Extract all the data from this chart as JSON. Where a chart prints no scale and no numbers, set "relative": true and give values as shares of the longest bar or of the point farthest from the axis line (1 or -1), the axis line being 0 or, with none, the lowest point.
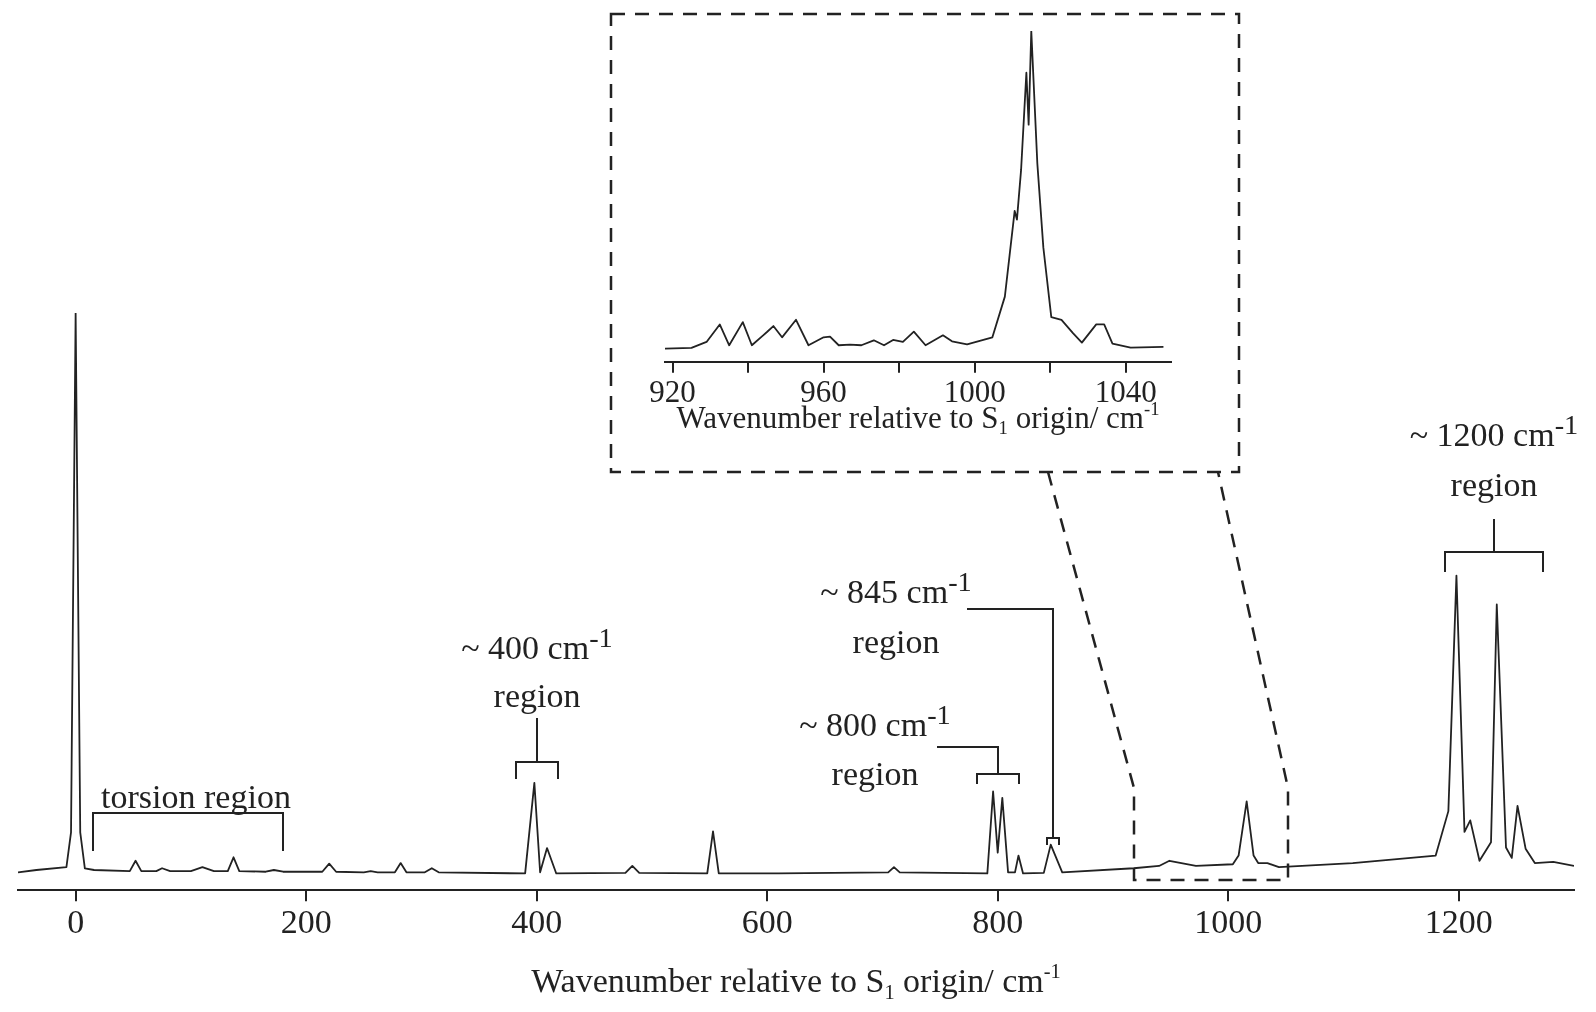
{
  "chart_data": [
    {
      "type": "line",
      "relative": true,
      "xlabel": "Wavenumber relative to S$_{1}$ origin/ cm$^{-1}$",
      "xlim": [
        -50,
        1300
      ],
      "xticks": [
        0,
        200,
        400,
        600,
        800,
        1000,
        1200
      ],
      "x": [
        -50,
        -34,
        -8,
        -4,
        0,
        4,
        8,
        16,
        47,
        52,
        57,
        70,
        75,
        82,
        100,
        110,
        120,
        132,
        137,
        142,
        165,
        172,
        180,
        214,
        220,
        226,
        250,
        256,
        262,
        277,
        282,
        287,
        303,
        309,
        315,
        390,
        398,
        403,
        409,
        417,
        477,
        483,
        489,
        548,
        553,
        558,
        610,
        705,
        710,
        715,
        791,
        796,
        800,
        804,
        809,
        815,
        818,
        822,
        840,
        846,
        856,
        918,
        940,
        949,
        972,
        1004,
        1009,
        1016,
        1022,
        1026,
        1034,
        1044,
        1108,
        1180,
        1191,
        1198,
        1205,
        1210,
        1218,
        1228,
        1233,
        1241,
        1246,
        1251,
        1258,
        1266,
        1282,
        1300
      ],
      "series": [
        {
          "color": "#222222",
          "values": [
            0.031,
            0.035,
            0.04,
            0.1,
            1.0,
            0.1,
            0.038,
            0.035,
            0.033,
            0.051,
            0.033,
            0.033,
            0.038,
            0.033,
            0.033,
            0.04,
            0.033,
            0.033,
            0.057,
            0.033,
            0.032,
            0.035,
            0.032,
            0.032,
            0.046,
            0.032,
            0.031,
            0.033,
            0.031,
            0.031,
            0.047,
            0.031,
            0.031,
            0.038,
            0.031,
            0.029,
            0.186,
            0.031,
            0.073,
            0.029,
            0.03,
            0.042,
            0.03,
            0.029,
            0.102,
            0.029,
            0.029,
            0.031,
            0.04,
            0.031,
            0.029,
            0.171,
            0.065,
            0.16,
            0.031,
            0.031,
            0.06,
            0.029,
            0.03,
            0.079,
            0.031,
            0.038,
            0.042,
            0.051,
            0.042,
            0.045,
            0.06,
            0.154,
            0.06,
            0.047,
            0.047,
            0.04,
            0.047,
            0.06,
            0.137,
            0.545,
            0.101,
            0.121,
            0.051,
            0.083,
            0.495,
            0.074,
            0.056,
            0.146,
            0.072,
            0.047,
            0.049,
            0.042
          ]
        }
      ],
      "annotations": [
        "torsion region",
        "~ 400 cm$^{-1}$ region",
        "~ 800 cm$^{-1}$ region",
        "~ 845 cm$^{-1}$ region",
        "~ 1200 cm$^{-1}$ region"
      ]
    },
    {
      "type": "line",
      "relative": true,
      "xlabel": "Wavenumber relative to S$_{1}$ origin/ cm$^{-1}$",
      "xlim": [
        918,
        1052
      ],
      "xticks": [
        920,
        {
          "value": 940,
          "label": null
        },
        960,
        {
          "value": 980,
          "label": null
        },
        1000,
        {
          "value": 1020,
          "label": null
        },
        1040
      ],
      "x": [
        918,
        925,
        929,
        932.5,
        935,
        938.6,
        941,
        945,
        946.7,
        949,
        952.7,
        956,
        960,
        961.7,
        964,
        967,
        970,
        973.3,
        976,
        978.4,
        981,
        983.9,
        987,
        991.6,
        994,
        998,
        1004.7,
        1008,
        1010.6,
        1011.2,
        1012.3,
        1013.7,
        1014.3,
        1015,
        1016.6,
        1018.2,
        1020.3,
        1023,
        1026.1,
        1028.4,
        1032.2,
        1034.3,
        1036.5,
        1041.3,
        1050
      ],
      "series": [
        {
          "color": "#222222",
          "values": [
            0.04,
            0.042,
            0.06,
            0.113,
            0.05,
            0.12,
            0.05,
            0.09,
            0.108,
            0.074,
            0.127,
            0.05,
            0.074,
            0.076,
            0.05,
            0.052,
            0.05,
            0.065,
            0.05,
            0.066,
            0.06,
            0.091,
            0.05,
            0.08,
            0.062,
            0.053,
            0.074,
            0.197,
            0.456,
            0.43,
            0.58,
            0.874,
            0.717,
            1.0,
            0.6,
            0.345,
            0.135,
            0.127,
            0.086,
            0.058,
            0.113,
            0.113,
            0.055,
            0.043,
            0.045
          ]
        }
      ]
    }
  ]
}
